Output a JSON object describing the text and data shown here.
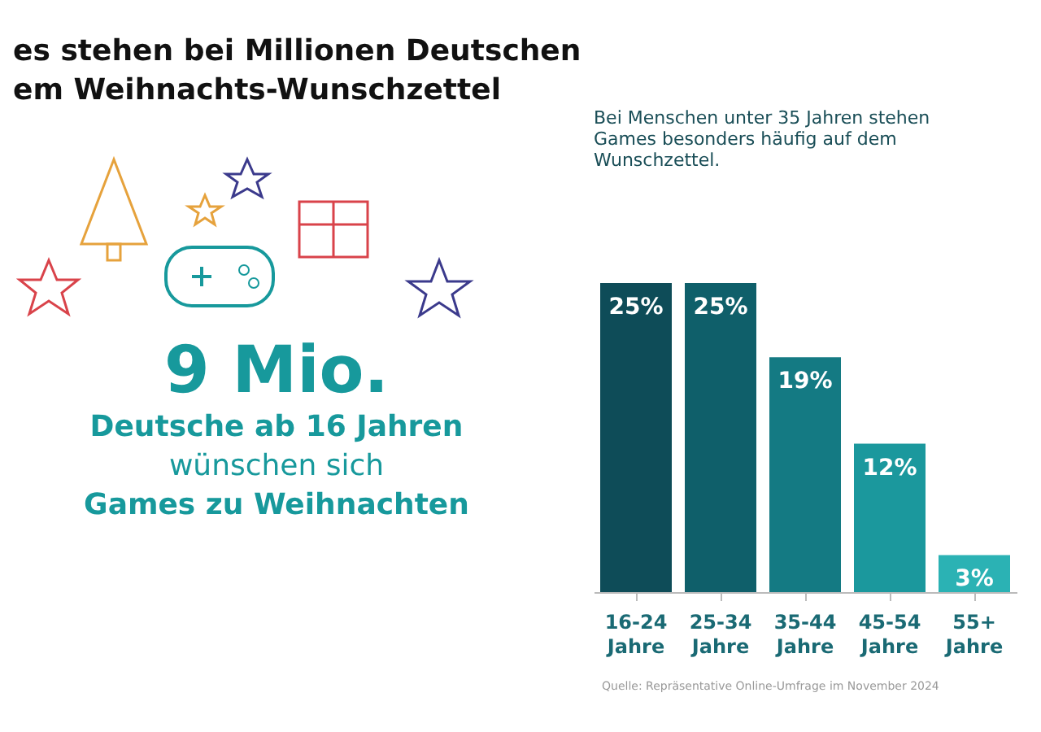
{
  "chart_data": {
    "type": "bar",
    "title": "es stehen bei Millionen Deutschen\nem Weihnachts-Wunschzettel",
    "subtitle": "Bei Menschen unter 35 Jahren stehen Games besonders häufig auf dem Wunschzettel.",
    "categories": [
      "16-24 Jahre",
      "25-34 Jahre",
      "35-44 Jahre",
      "45-54 Jahre",
      "55+ Jahre"
    ],
    "values": [
      25,
      25,
      19,
      12,
      3
    ],
    "value_labels": [
      "25%",
      "25%",
      "19%",
      "12%",
      "3%"
    ],
    "colors": [
      "#0e4c58",
      "#0f5f6a",
      "#147a83",
      "#1b989d",
      "#2bb2b4"
    ],
    "annotations": [
      "9 Mio.",
      "Deutsche ab 16 Jahren",
      "wünschen sich",
      "Games zu Weihnachten",
      "Quelle: Repräsentative Online-Umfrage im November 2024"
    ]
  }
}
